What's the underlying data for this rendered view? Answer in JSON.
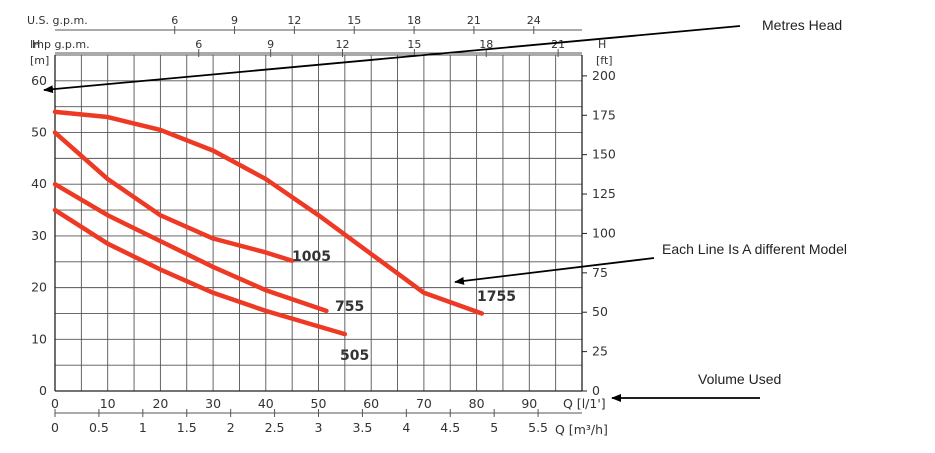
{
  "chart_data": {
    "type": "line",
    "x_primary": {
      "label": "Q [l/1']",
      "range": [
        0,
        100
      ],
      "ticks": [
        0,
        10,
        20,
        30,
        40,
        50,
        60,
        70,
        80,
        90
      ]
    },
    "x_secondary": {
      "label": "Q [m³/h]",
      "range": [
        0,
        6
      ],
      "ticks": [
        "0",
        "0.5",
        "1",
        "1.5",
        "2",
        "2.5",
        "3",
        "3.5",
        "4",
        "4.5",
        "5",
        "5.5"
      ]
    },
    "x_top_us": {
      "label": "U.S.  g.p.m.",
      "ticks": [
        "6",
        "9",
        "12",
        "15",
        "18",
        "21",
        "24"
      ],
      "values": [
        6,
        9,
        12,
        15,
        18,
        21,
        24
      ]
    },
    "x_top_imp": {
      "label": "Imp  g.p.m.",
      "ticks": [
        "6",
        "9",
        "12",
        "15",
        "18",
        "21"
      ],
      "values": [
        6,
        9,
        12,
        15,
        18,
        21
      ]
    },
    "y_left": {
      "label_top": "H",
      "unit": "[m]",
      "range": [
        0,
        65
      ],
      "ticks": [
        0,
        10,
        20,
        30,
        40,
        50,
        60
      ]
    },
    "y_right": {
      "label_top": "H",
      "unit": "[ft]",
      "ticks": [
        0,
        25,
        50,
        75,
        100,
        125,
        150,
        175,
        200
      ]
    },
    "grid": true,
    "series": [
      {
        "name": "1005",
        "color": "#ee3a24",
        "x": [
          0,
          10,
          20,
          30,
          40,
          45
        ],
        "y": [
          50,
          41,
          34,
          29.5,
          26.8,
          25.2
        ]
      },
      {
        "name": "755",
        "color": "#ee3a24",
        "x": [
          0,
          10,
          20,
          30,
          40,
          51.5
        ],
        "y": [
          40,
          34,
          29,
          24,
          19.5,
          15.5
        ]
      },
      {
        "name": "505",
        "color": "#ee3a24",
        "x": [
          0,
          10,
          20,
          30,
          40,
          55
        ],
        "y": [
          35,
          28.5,
          23.5,
          19,
          15.5,
          11
        ]
      },
      {
        "name": "1755",
        "color": "#ee3a24",
        "x": [
          0,
          10,
          20,
          30,
          40,
          50,
          60,
          70,
          81
        ],
        "y": [
          54,
          53,
          50.5,
          46.5,
          41,
          34,
          26.5,
          19,
          15
        ]
      }
    ],
    "annotations": [
      {
        "text": "Metres Head"
      },
      {
        "text": "Each Line Is A different Model"
      },
      {
        "text": "Volume Used"
      }
    ]
  }
}
